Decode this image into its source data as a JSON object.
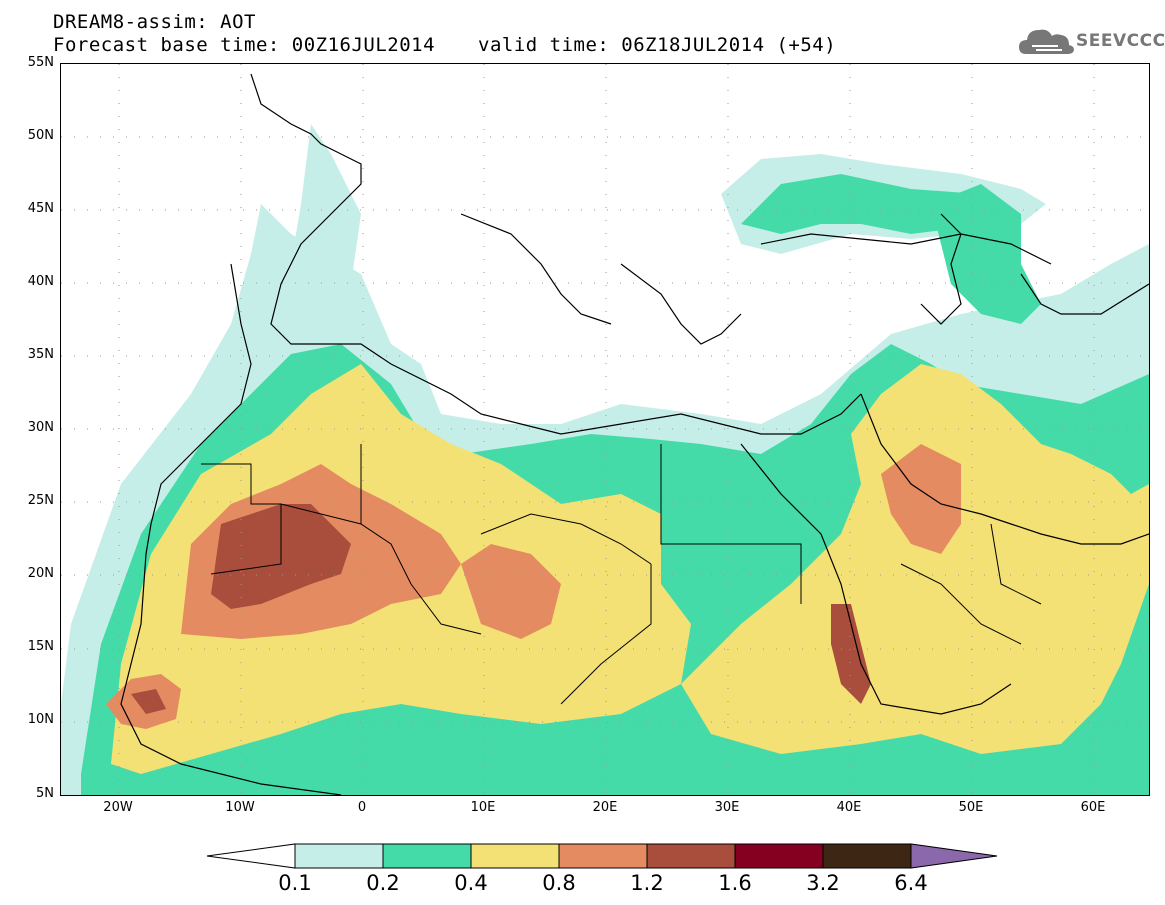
{
  "header": {
    "line1": "DREAM8-assim: AOT",
    "line2": "Forecast base time: 00Z16JUL2014",
    "line3": "valid time: 06Z18JUL2014 (+54)"
  },
  "logo": {
    "text": "SEEVCCC",
    "icon": "cloud-icon",
    "color": "#777777"
  },
  "map": {
    "lat_range": [
      5,
      55
    ],
    "lon_range": [
      -25,
      65
    ],
    "lat_labels": [
      "55N",
      "50N",
      "45N",
      "40N",
      "35N",
      "30N",
      "25N",
      "20N",
      "15N",
      "10N",
      "5N"
    ],
    "lon_labels": [
      "20W",
      "10W",
      "0",
      "10E",
      "20E",
      "30E",
      "40E",
      "50E",
      "60E"
    ]
  },
  "legend": {
    "labels": [
      "0.1",
      "0.2",
      "0.4",
      "0.8",
      "1.2",
      "1.6",
      "3.2",
      "6.4"
    ],
    "colors": [
      "#ffffff",
      "#c6eee8",
      "#45dba9",
      "#f4e175",
      "#e58b61",
      "#a94d3c",
      "#850020",
      "#3d2614",
      "#8b68ac"
    ]
  }
}
